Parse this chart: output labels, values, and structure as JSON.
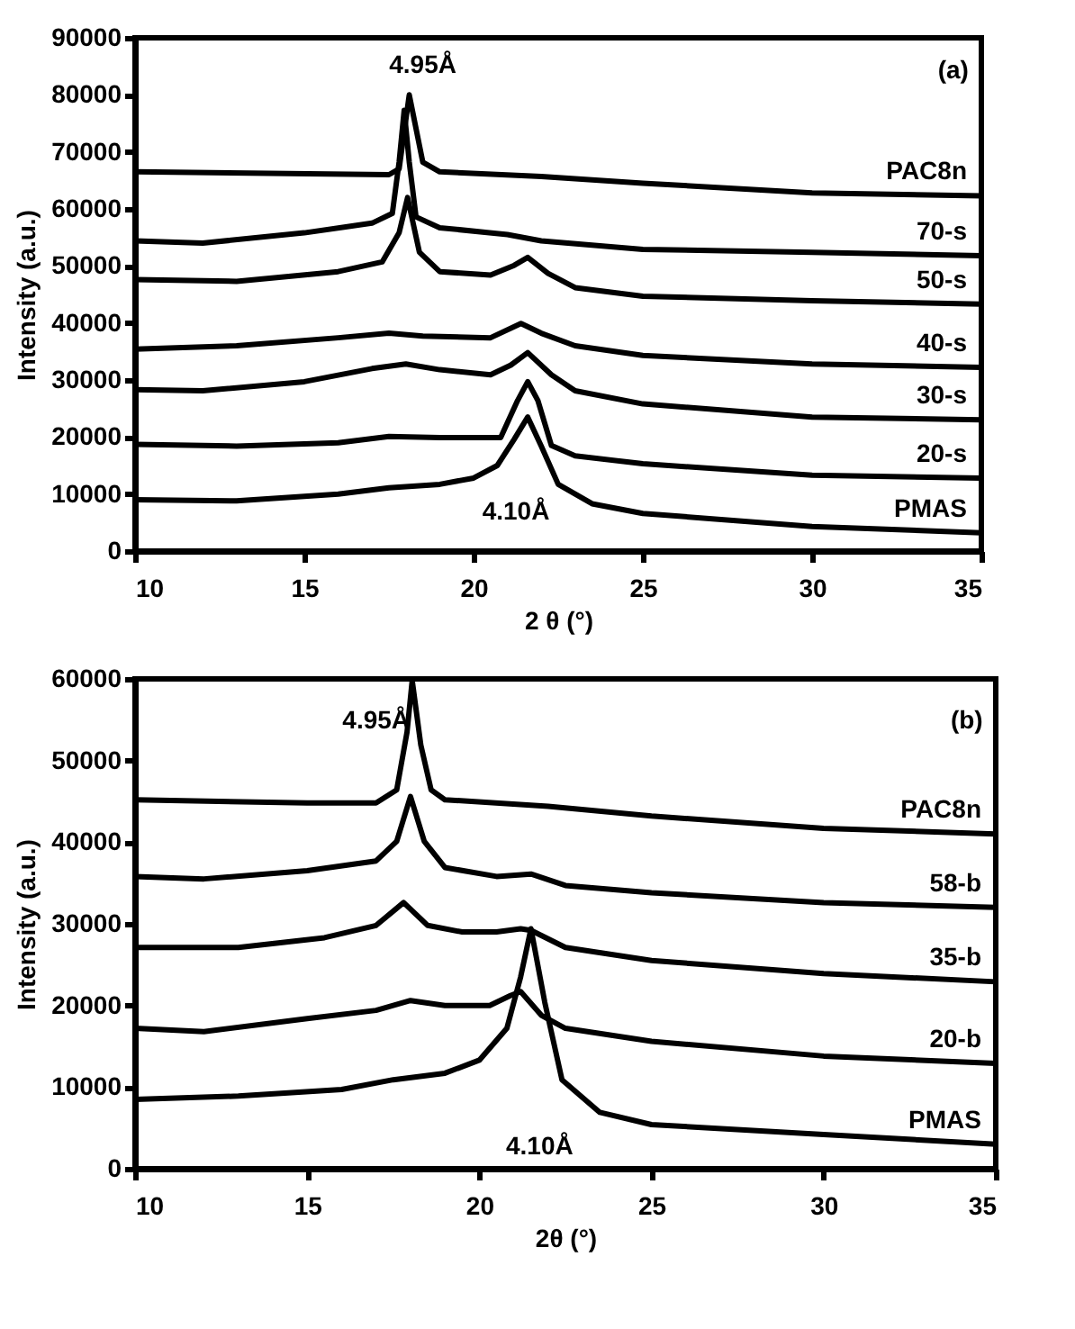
{
  "chart_data": [
    {
      "type": "line",
      "xlabel": "2 θ (°)",
      "ylabel": "Intensity (a.u.)",
      "xlim": [
        10,
        35
      ],
      "xticks": [
        10,
        15,
        20,
        25,
        30,
        35
      ],
      "ylim": [
        0,
        90000
      ],
      "yticks": [
        0,
        10000,
        20000,
        30000,
        40000,
        50000,
        60000,
        70000,
        80000,
        90000
      ],
      "grid": false,
      "annotations": [
        "4.95Å",
        "4.10Å",
        "(a)"
      ],
      "series": [
        {
          "name": "PAC8n",
          "color": "#000000",
          "x": [
            10,
            17.5,
            17.8,
            18.1,
            18.5,
            19,
            22,
            25,
            30,
            35
          ],
          "values": [
            66500,
            66000,
            67000,
            80000,
            68200,
            66500,
            65700,
            64500,
            62800,
            62300
          ]
        },
        {
          "name": "70-s",
          "color": "#000000",
          "x": [
            10,
            12,
            15,
            17,
            17.6,
            17.8,
            17.95,
            18.1,
            18.3,
            19,
            21,
            22,
            25,
            30,
            35
          ],
          "values": [
            54400,
            54000,
            55800,
            57500,
            59200,
            68200,
            77300,
            68200,
            58600,
            56700,
            55500,
            54400,
            52900,
            52400,
            51800
          ]
        },
        {
          "name": "50-s",
          "color": "#000000",
          "x": [
            10,
            13,
            16,
            17.3,
            17.8,
            18.05,
            18.4,
            19,
            20.5,
            21.2,
            21.6,
            22.2,
            23,
            25,
            30,
            35
          ],
          "values": [
            47600,
            47300,
            49000,
            50700,
            55800,
            62000,
            52400,
            49000,
            48400,
            50100,
            51500,
            48700,
            46200,
            44700,
            43900,
            43300
          ]
        },
        {
          "name": "40-s",
          "color": "#000000",
          "x": [
            10,
            13,
            16,
            17.5,
            18.5,
            20.5,
            21.4,
            22,
            23,
            25,
            30,
            35
          ],
          "values": [
            35400,
            36000,
            37400,
            38200,
            37700,
            37400,
            39900,
            38200,
            36000,
            34300,
            32800,
            32200
          ]
        },
        {
          "name": "30-s",
          "color": "#000000",
          "x": [
            10,
            12,
            15,
            17,
            18,
            19,
            20.5,
            21.1,
            21.6,
            22.3,
            23,
            25,
            30,
            35
          ],
          "values": [
            28300,
            28100,
            29700,
            32000,
            32800,
            31800,
            30900,
            32600,
            34800,
            30900,
            28100,
            25800,
            23500,
            23000
          ]
        },
        {
          "name": "20-s",
          "color": "#000000",
          "x": [
            10,
            13,
            16,
            17.5,
            19,
            20.8,
            21.3,
            21.6,
            21.9,
            22.3,
            23,
            25,
            30,
            35
          ],
          "values": [
            18700,
            18400,
            19000,
            20100,
            19900,
            19900,
            26400,
            29700,
            26400,
            18500,
            16700,
            15300,
            13300,
            12800
          ]
        },
        {
          "name": "PMAS",
          "color": "#000000",
          "x": [
            10,
            13,
            16,
            17.5,
            19,
            20,
            20.7,
            21.2,
            21.6,
            22,
            22.5,
            23.5,
            25,
            30,
            35
          ],
          "values": [
            9000,
            8800,
            10000,
            11100,
            11700,
            12800,
            15000,
            19600,
            23500,
            18400,
            11700,
            8300,
            6600,
            4300,
            3200
          ]
        }
      ]
    },
    {
      "type": "line",
      "xlabel": "2θ (°)",
      "ylabel": "Intensity (a.u.)",
      "xlim": [
        10,
        35
      ],
      "xticks": [
        10,
        15,
        20,
        25,
        30,
        35
      ],
      "ylim": [
        0,
        60000
      ],
      "yticks": [
        0,
        10000,
        20000,
        30000,
        40000,
        50000,
        60000
      ],
      "grid": false,
      "annotations": [
        "4.95Å",
        "4.10Å",
        "(b)"
      ],
      "series": [
        {
          "name": "PAC8n",
          "color": "#000000",
          "x": [
            10,
            15,
            17,
            17.6,
            17.9,
            18.05,
            18.3,
            18.6,
            19,
            22,
            25,
            30,
            35
          ],
          "values": [
            45200,
            44800,
            44800,
            46400,
            53500,
            59800,
            51900,
            46400,
            45200,
            44400,
            43200,
            41700,
            41000
          ]
        },
        {
          "name": "58-b",
          "color": "#000000",
          "x": [
            10,
            12,
            15,
            17,
            17.6,
            18,
            18.4,
            19,
            20.5,
            21.5,
            22.5,
            25,
            30,
            35
          ],
          "values": [
            35800,
            35500,
            36500,
            37700,
            40100,
            45600,
            40100,
            36900,
            35800,
            36100,
            34700,
            33800,
            32600,
            32000
          ]
        },
        {
          "name": "35-b",
          "color": "#000000",
          "x": [
            10,
            13,
            15.5,
            17,
            17.8,
            18.5,
            19.5,
            20.5,
            21.2,
            21.5,
            22.5,
            25,
            30,
            35
          ],
          "values": [
            27100,
            27100,
            28300,
            29800,
            32600,
            29800,
            29000,
            29000,
            29400,
            29200,
            27100,
            25500,
            23900,
            22900
          ]
        },
        {
          "name": "20-b",
          "color": "#000000",
          "x": [
            10,
            12,
            15,
            17,
            18,
            19,
            20.3,
            20.9,
            21.2,
            21.8,
            22.5,
            25,
            30,
            35
          ],
          "values": [
            17200,
            16800,
            18400,
            19400,
            20600,
            20000,
            20000,
            21200,
            21700,
            18800,
            17200,
            15600,
            13800,
            12900
          ]
        },
        {
          "name": "PMAS",
          "color": "#000000",
          "x": [
            10,
            13,
            16,
            17.5,
            19,
            20,
            20.8,
            21.2,
            21.5,
            21.9,
            22.4,
            23.5,
            25,
            30,
            35
          ],
          "values": [
            8500,
            8900,
            9700,
            10900,
            11700,
            13300,
            17200,
            23500,
            29400,
            20400,
            10900,
            6900,
            5400,
            4200,
            3000
          ]
        }
      ]
    }
  ]
}
